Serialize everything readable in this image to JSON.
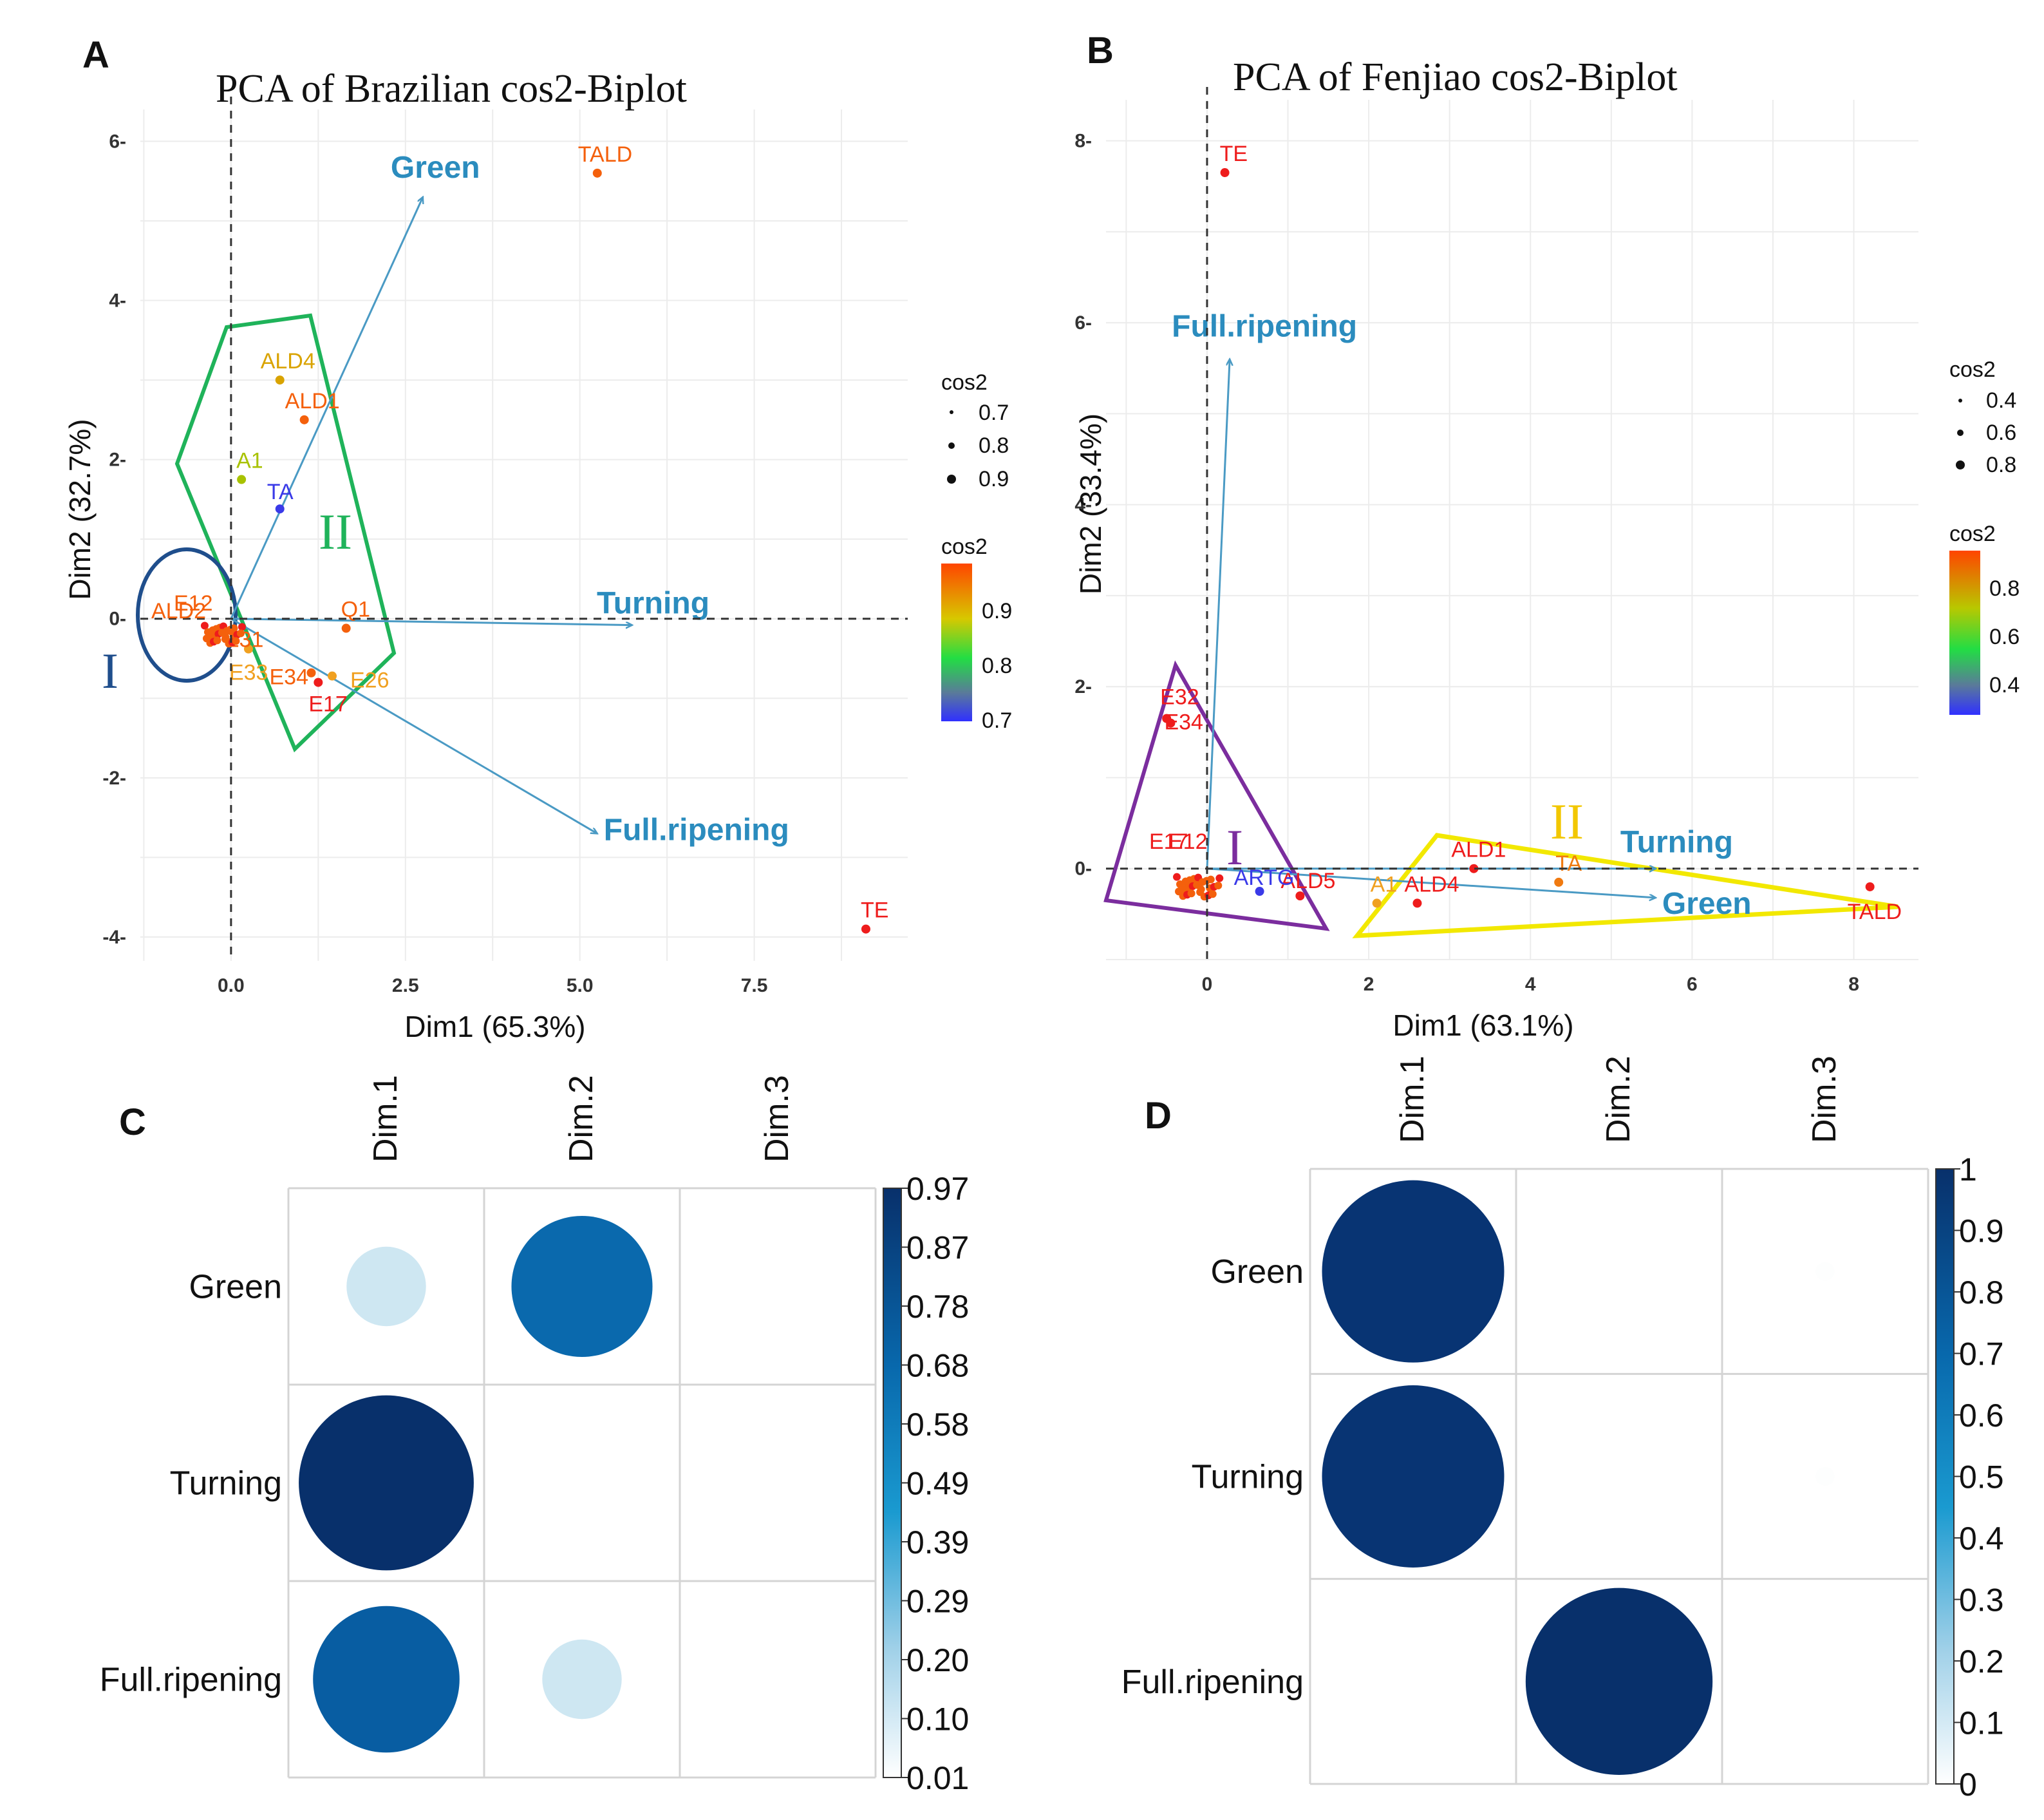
{
  "chart_data": [
    {
      "id": "A",
      "type": "scatter",
      "panel_label": "A",
      "title": "PCA of Brazilian cos2-Biplot",
      "xlabel": "Dim1 (65.3%)",
      "ylabel": "Dim2 (32.7%)",
      "xlim": [
        -1.3,
        9.7
      ],
      "ylim": [
        -4.3,
        6.4
      ],
      "xticks": [
        0.0,
        2.5,
        5.0,
        7.5
      ],
      "xtick_labels": [
        "0.0",
        "2.5",
        "5.0",
        "7.5"
      ],
      "yticks": [
        -4,
        -2,
        0,
        2,
        4,
        6
      ],
      "ytick_labels": [
        "-4",
        "-2",
        "0",
        "2",
        "4",
        "6"
      ],
      "points": [
        {
          "label": "TALD",
          "x": 5.25,
          "y": 5.6,
          "color": "#f4600c"
        },
        {
          "label": "ALD4",
          "x": 0.7,
          "y": 3.0,
          "color": "#d9a300"
        },
        {
          "label": "ALD1",
          "x": 1.05,
          "y": 2.5,
          "color": "#f4600c"
        },
        {
          "label": "A1",
          "x": 0.15,
          "y": 1.75,
          "color": "#a8c200"
        },
        {
          "label": "TA",
          "x": 0.7,
          "y": 1.38,
          "color": "#3a3ae8"
        },
        {
          "label": "Q1",
          "x": 1.65,
          "y": -0.12,
          "color": "#f4600c"
        },
        {
          "label": "E26",
          "x": 1.45,
          "y": -0.72,
          "color": "#f0a020"
        },
        {
          "label": "E33",
          "x": 0.25,
          "y": -0.38,
          "color": "#f0a020"
        },
        {
          "label": "E34",
          "x": 1.15,
          "y": -0.68,
          "color": "#f4600c"
        },
        {
          "label": "E17",
          "x": 1.25,
          "y": -0.8,
          "color": "#ee1c1c"
        },
        {
          "label": "E31",
          "x": 0.0,
          "y": -0.15,
          "color": "#f4600c"
        },
        {
          "label": "TE",
          "x": 9.1,
          "y": -3.9,
          "color": "#ee1c1c"
        }
      ],
      "cluster_labels": [
        "ALD2",
        "E12"
      ],
      "vectors": [
        {
          "name": "Green",
          "x": 2.75,
          "y": 5.3
        },
        {
          "name": "Turning",
          "x": 5.75,
          "y": -0.08
        },
        {
          "name": "Full.ripening",
          "x": 5.25,
          "y": -2.7
        }
      ],
      "groups": [
        "I",
        "II"
      ],
      "legend_size_title": "cos2",
      "legend_size_values": [
        "0.7",
        "0.8",
        "0.9"
      ],
      "legend_color_title": "cos2",
      "legend_color_values": [
        "0.9",
        "0.8",
        "0.7"
      ]
    },
    {
      "id": "B",
      "type": "scatter",
      "panel_label": "B",
      "title": "PCA of Fenjiao cos2-Biplot",
      "xlabel": "Dim1 (63.1%)",
      "ylabel": "Dim2 (33.4%)",
      "xlim": [
        -1.25,
        8.8
      ],
      "ylim": [
        -1.0,
        8.45
      ],
      "xticks": [
        0,
        2,
        4,
        6,
        8
      ],
      "xtick_labels": [
        "0",
        "2",
        "4",
        "6",
        "8"
      ],
      "yticks": [
        0,
        2,
        4,
        6,
        8
      ],
      "ytick_labels": [
        "0",
        "2",
        "4",
        "6",
        "8"
      ],
      "points": [
        {
          "label": "TE",
          "x": 0.22,
          "y": 7.65,
          "color": "#ee1c1c"
        },
        {
          "label": "E32",
          "x": -0.5,
          "y": 1.65,
          "color": "#ee1c1c"
        },
        {
          "label": "E34",
          "x": -0.45,
          "y": 1.6,
          "color": "#ee1c1c"
        },
        {
          "label": "ALD1",
          "x": 3.3,
          "y": 0.0,
          "color": "#ee1c1c"
        },
        {
          "label": "TA",
          "x": 4.35,
          "y": -0.15,
          "color": "#f07a10"
        },
        {
          "label": "ALD5",
          "x": 1.15,
          "y": -0.3,
          "color": "#ee1c1c"
        },
        {
          "label": "A1",
          "x": 2.1,
          "y": -0.38,
          "color": "#f0a020"
        },
        {
          "label": "ALD4",
          "x": 2.6,
          "y": -0.38,
          "color": "#ee1c1c"
        },
        {
          "label": "TALD",
          "x": 8.2,
          "y": -0.2,
          "color": "#ee1c1c"
        },
        {
          "label": "ARTG",
          "x": 0.65,
          "y": -0.25,
          "color": "#3a3ae8"
        }
      ],
      "cluster_labels": [
        "E17",
        "E12"
      ],
      "vectors": [
        {
          "name": "Full.ripening",
          "x": 0.28,
          "y": 5.6
        },
        {
          "name": "Turning",
          "x": 5.55,
          "y": 0.0
        },
        {
          "name": "Green",
          "x": 5.55,
          "y": -0.32
        }
      ],
      "groups": [
        "I",
        "II"
      ],
      "legend_size_title": "cos2",
      "legend_size_values": [
        "0.4",
        "0.6",
        "0.8"
      ],
      "legend_color_title": "cos2",
      "legend_color_values": [
        "0.8",
        "0.6",
        "0.4"
      ]
    },
    {
      "id": "C",
      "type": "heatmap",
      "panel_label": "C",
      "columns": [
        "Dim.1",
        "Dim.2",
        "Dim.3"
      ],
      "rows": [
        "Green",
        "Turning",
        "Full.ripening"
      ],
      "values": [
        [
          0.2,
          0.63,
          0.0
        ],
        [
          0.97,
          0.0,
          0.01
        ],
        [
          0.68,
          0.2,
          0.01
        ]
      ],
      "colorbar_labels": [
        "0.97",
        "0.87",
        "0.78",
        "0.68",
        "0.58",
        "0.49",
        "0.39",
        "0.29",
        "0.20",
        "0.10",
        "0.01"
      ],
      "range": [
        0.01,
        0.97
      ]
    },
    {
      "id": "D",
      "type": "heatmap",
      "panel_label": "D",
      "columns": [
        "Dim.1",
        "Dim.2",
        "Dim.3"
      ],
      "rows": [
        "Green",
        "Turning",
        "Full.ripening"
      ],
      "values": [
        [
          0.95,
          0.0,
          0.01
        ],
        [
          0.95,
          0.0,
          0.01
        ],
        [
          0.0,
          1.0,
          0.0
        ]
      ],
      "colorbar_labels": [
        "1",
        "0.9",
        "0.8",
        "0.7",
        "0.6",
        "0.5",
        "0.4",
        "0.3",
        "0.2",
        "0.1",
        "0"
      ],
      "range": [
        0,
        1
      ]
    }
  ]
}
